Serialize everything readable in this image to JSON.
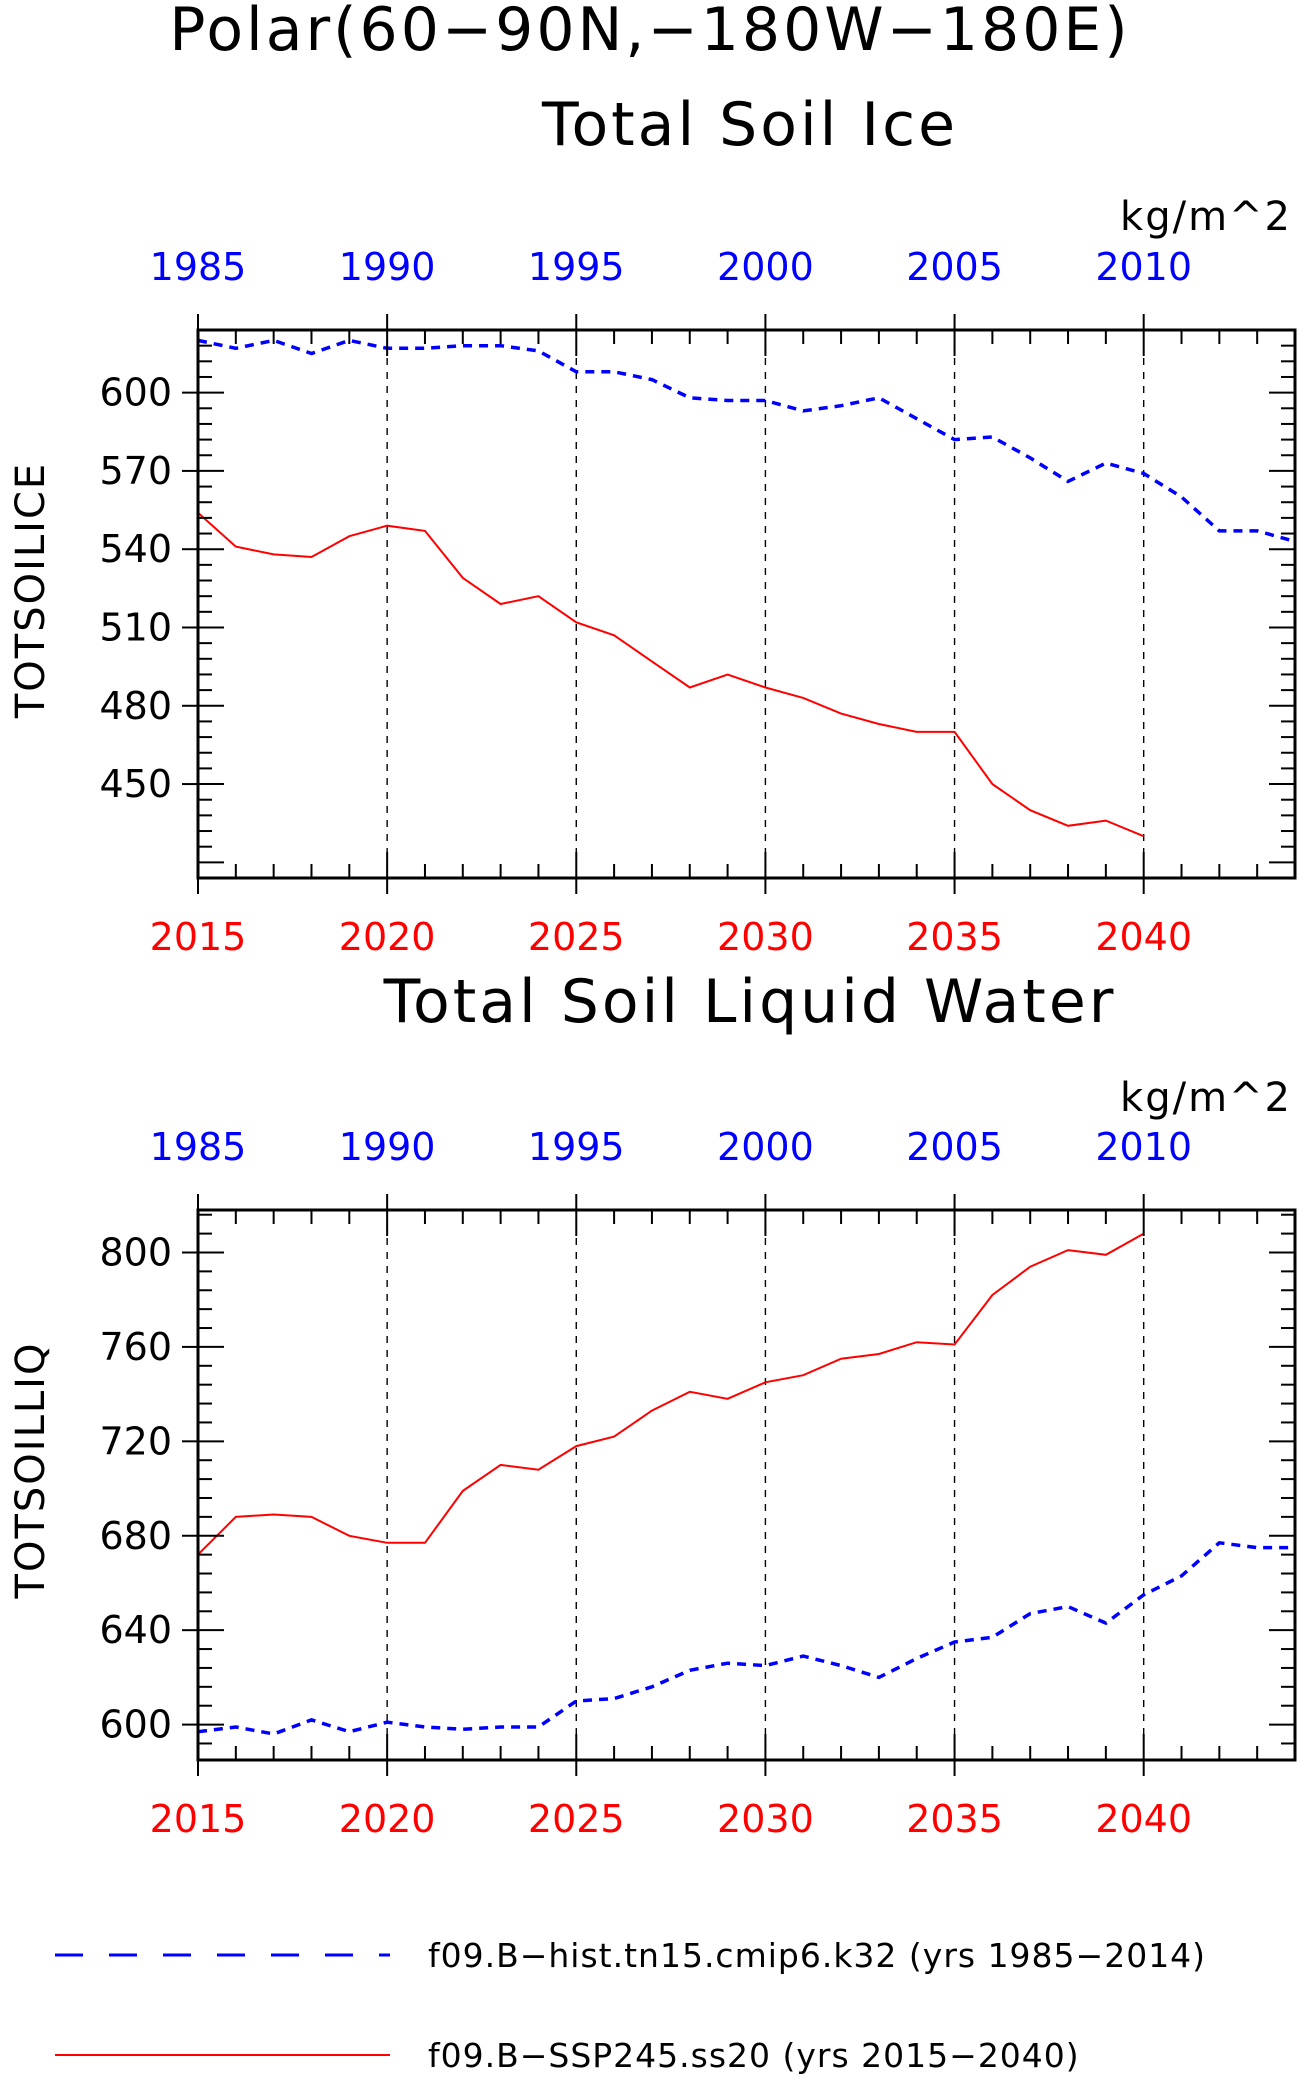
{
  "page": {
    "region_title": "Polar(60−90N,−180W−180E)"
  },
  "colors": {
    "hist": "#0000ff",
    "ssp": "#ff0000",
    "axis": "#000000",
    "grid": "#000000"
  },
  "chart_data": [
    {
      "type": "line",
      "title": "Total Soil Ice",
      "units": "kg/m^2",
      "ylabel": "TOTSOILICE",
      "ylim": [
        414,
        624
      ],
      "yticks": [
        450,
        480,
        510,
        540,
        570,
        600
      ],
      "bottom_axis": {
        "range": [
          2015,
          2044
        ],
        "ticks": [
          2015,
          2020,
          2025,
          2030,
          2035,
          2040
        ]
      },
      "top_axis": {
        "range": [
          1985,
          2014
        ],
        "ticks": [
          1985,
          1990,
          1995,
          2000,
          2005,
          2010
        ]
      },
      "grid_x": [
        2020,
        2025,
        2030,
        2035,
        2040
      ],
      "series": [
        {
          "key": "hist",
          "x": [
            1985,
            1986,
            1987,
            1988,
            1989,
            1990,
            1991,
            1992,
            1993,
            1994,
            1995,
            1996,
            1997,
            1998,
            1999,
            2000,
            2001,
            2002,
            2003,
            2004,
            2005,
            2006,
            2007,
            2008,
            2009,
            2010,
            2011,
            2012,
            2013,
            2014
          ],
          "values": [
            620,
            617,
            620,
            615,
            620,
            617,
            617,
            618,
            618,
            616,
            608,
            608,
            605,
            598,
            597,
            597,
            593,
            595,
            598,
            590,
            582,
            583,
            575,
            566,
            573,
            569,
            560,
            547,
            547,
            543
          ]
        },
        {
          "key": "ssp",
          "x": [
            2015,
            2016,
            2017,
            2018,
            2019,
            2020,
            2021,
            2022,
            2023,
            2024,
            2025,
            2026,
            2027,
            2028,
            2029,
            2030,
            2031,
            2032,
            2033,
            2034,
            2035,
            2036,
            2037,
            2038,
            2039,
            2040
          ],
          "values": [
            554,
            541,
            538,
            537,
            545,
            549,
            547,
            529,
            519,
            522,
            512,
            507,
            497,
            487,
            492,
            487,
            483,
            477,
            473,
            470,
            470,
            450,
            440,
            434,
            436,
            430
          ]
        }
      ]
    },
    {
      "type": "line",
      "title": "Total Soil Liquid Water",
      "units": "kg/m^2",
      "ylabel": "TOTSOILLIQ",
      "ylim": [
        585,
        818
      ],
      "yticks": [
        600,
        640,
        680,
        720,
        760,
        800
      ],
      "bottom_axis": {
        "range": [
          2015,
          2044
        ],
        "ticks": [
          2015,
          2020,
          2025,
          2030,
          2035,
          2040
        ]
      },
      "top_axis": {
        "range": [
          1985,
          2014
        ],
        "ticks": [
          1985,
          1990,
          1995,
          2000,
          2005,
          2010
        ]
      },
      "grid_x": [
        2020,
        2025,
        2030,
        2035,
        2040
      ],
      "series": [
        {
          "key": "hist",
          "x": [
            1985,
            1986,
            1987,
            1988,
            1989,
            1990,
            1991,
            1992,
            1993,
            1994,
            1995,
            1996,
            1997,
            1998,
            1999,
            2000,
            2001,
            2002,
            2003,
            2004,
            2005,
            2006,
            2007,
            2008,
            2009,
            2010,
            2011,
            2012,
            2013,
            2014
          ],
          "values": [
            597,
            599,
            596,
            602,
            597,
            601,
            599,
            598,
            599,
            599,
            610,
            611,
            616,
            623,
            626,
            625,
            629,
            625,
            620,
            628,
            635,
            637,
            647,
            650,
            643,
            655,
            663,
            677,
            675,
            675
          ]
        },
        {
          "key": "ssp",
          "x": [
            2015,
            2016,
            2017,
            2018,
            2019,
            2020,
            2021,
            2022,
            2023,
            2024,
            2025,
            2026,
            2027,
            2028,
            2029,
            2030,
            2031,
            2032,
            2033,
            2034,
            2035,
            2036,
            2037,
            2038,
            2039,
            2040
          ],
          "values": [
            672,
            688,
            689,
            688,
            680,
            677,
            677,
            699,
            710,
            708,
            718,
            722,
            733,
            741,
            738,
            745,
            748,
            755,
            757,
            762,
            761,
            782,
            794,
            801,
            799,
            808
          ]
        }
      ]
    }
  ],
  "legend": [
    {
      "key": "hist",
      "label": "f09.B−hist.tn15.cmip6.k32 (yrs 1985−2014)"
    },
    {
      "key": "ssp",
      "label": "f09.B−SSP245.ss20 (yrs 2015−2040)"
    }
  ]
}
